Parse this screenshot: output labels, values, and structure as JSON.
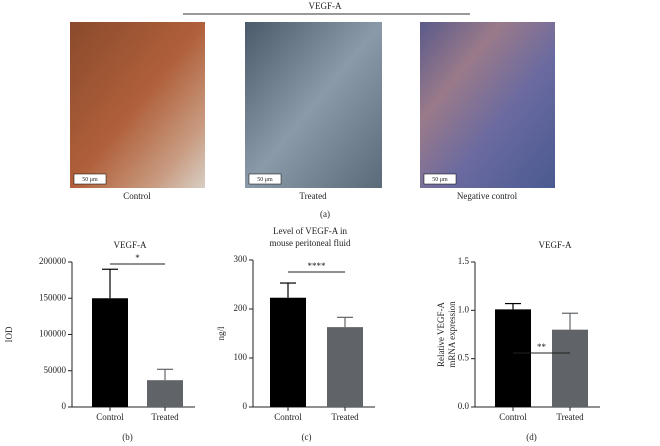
{
  "panel_a": {
    "title": "VEGF-A",
    "label": "(a)",
    "images": [
      {
        "caption": "Control",
        "scale_bar": "50 μm"
      },
      {
        "caption": "Treated",
        "scale_bar": "50 μm"
      },
      {
        "caption": "Negative control",
        "scale_bar": "50 μm"
      }
    ]
  },
  "chart_data": [
    {
      "type": "bar",
      "title_lines": [
        "VEGF-A"
      ],
      "ylabel_lines": [
        "IOD"
      ],
      "panel_label": "(b)",
      "categories": [
        "Control",
        "Treated"
      ],
      "values": [
        150000,
        37000
      ],
      "errors": [
        40000,
        15000
      ],
      "colors": [
        "#000000",
        "#606367"
      ],
      "ylim": [
        0,
        200000
      ],
      "yticks": [
        0,
        50000,
        100000,
        150000,
        200000
      ],
      "significance": "*"
    },
    {
      "type": "bar",
      "title_lines": [
        "Level of VEGF-A in",
        "mouse peritoneal fluid"
      ],
      "ylabel_lines": [
        "ng/l"
      ],
      "panel_label": "(c)",
      "categories": [
        "Control",
        "Treated"
      ],
      "values": [
        223,
        163
      ],
      "errors": [
        30,
        20
      ],
      "colors": [
        "#000000",
        "#606367"
      ],
      "ylim": [
        0,
        300
      ],
      "yticks": [
        0,
        100,
        200,
        300
      ],
      "significance": "****"
    },
    {
      "type": "bar",
      "title_lines": [
        "VEGF-A"
      ],
      "ylabel_lines": [
        "Relative VEGF-A",
        "mRNA expression"
      ],
      "panel_label": "(d)",
      "categories": [
        "Control",
        "Treated"
      ],
      "values": [
        1.01,
        0.8
      ],
      "errors": [
        0.06,
        0.17
      ],
      "colors": [
        "#000000",
        "#606367"
      ],
      "ylim": [
        0,
        1.5
      ],
      "yticks": [
        {
          "value": 0,
          "label": "0.0"
        },
        0.5,
        {
          "value": 1,
          "label": "1.0"
        },
        1.5
      ],
      "significance": "**"
    }
  ]
}
